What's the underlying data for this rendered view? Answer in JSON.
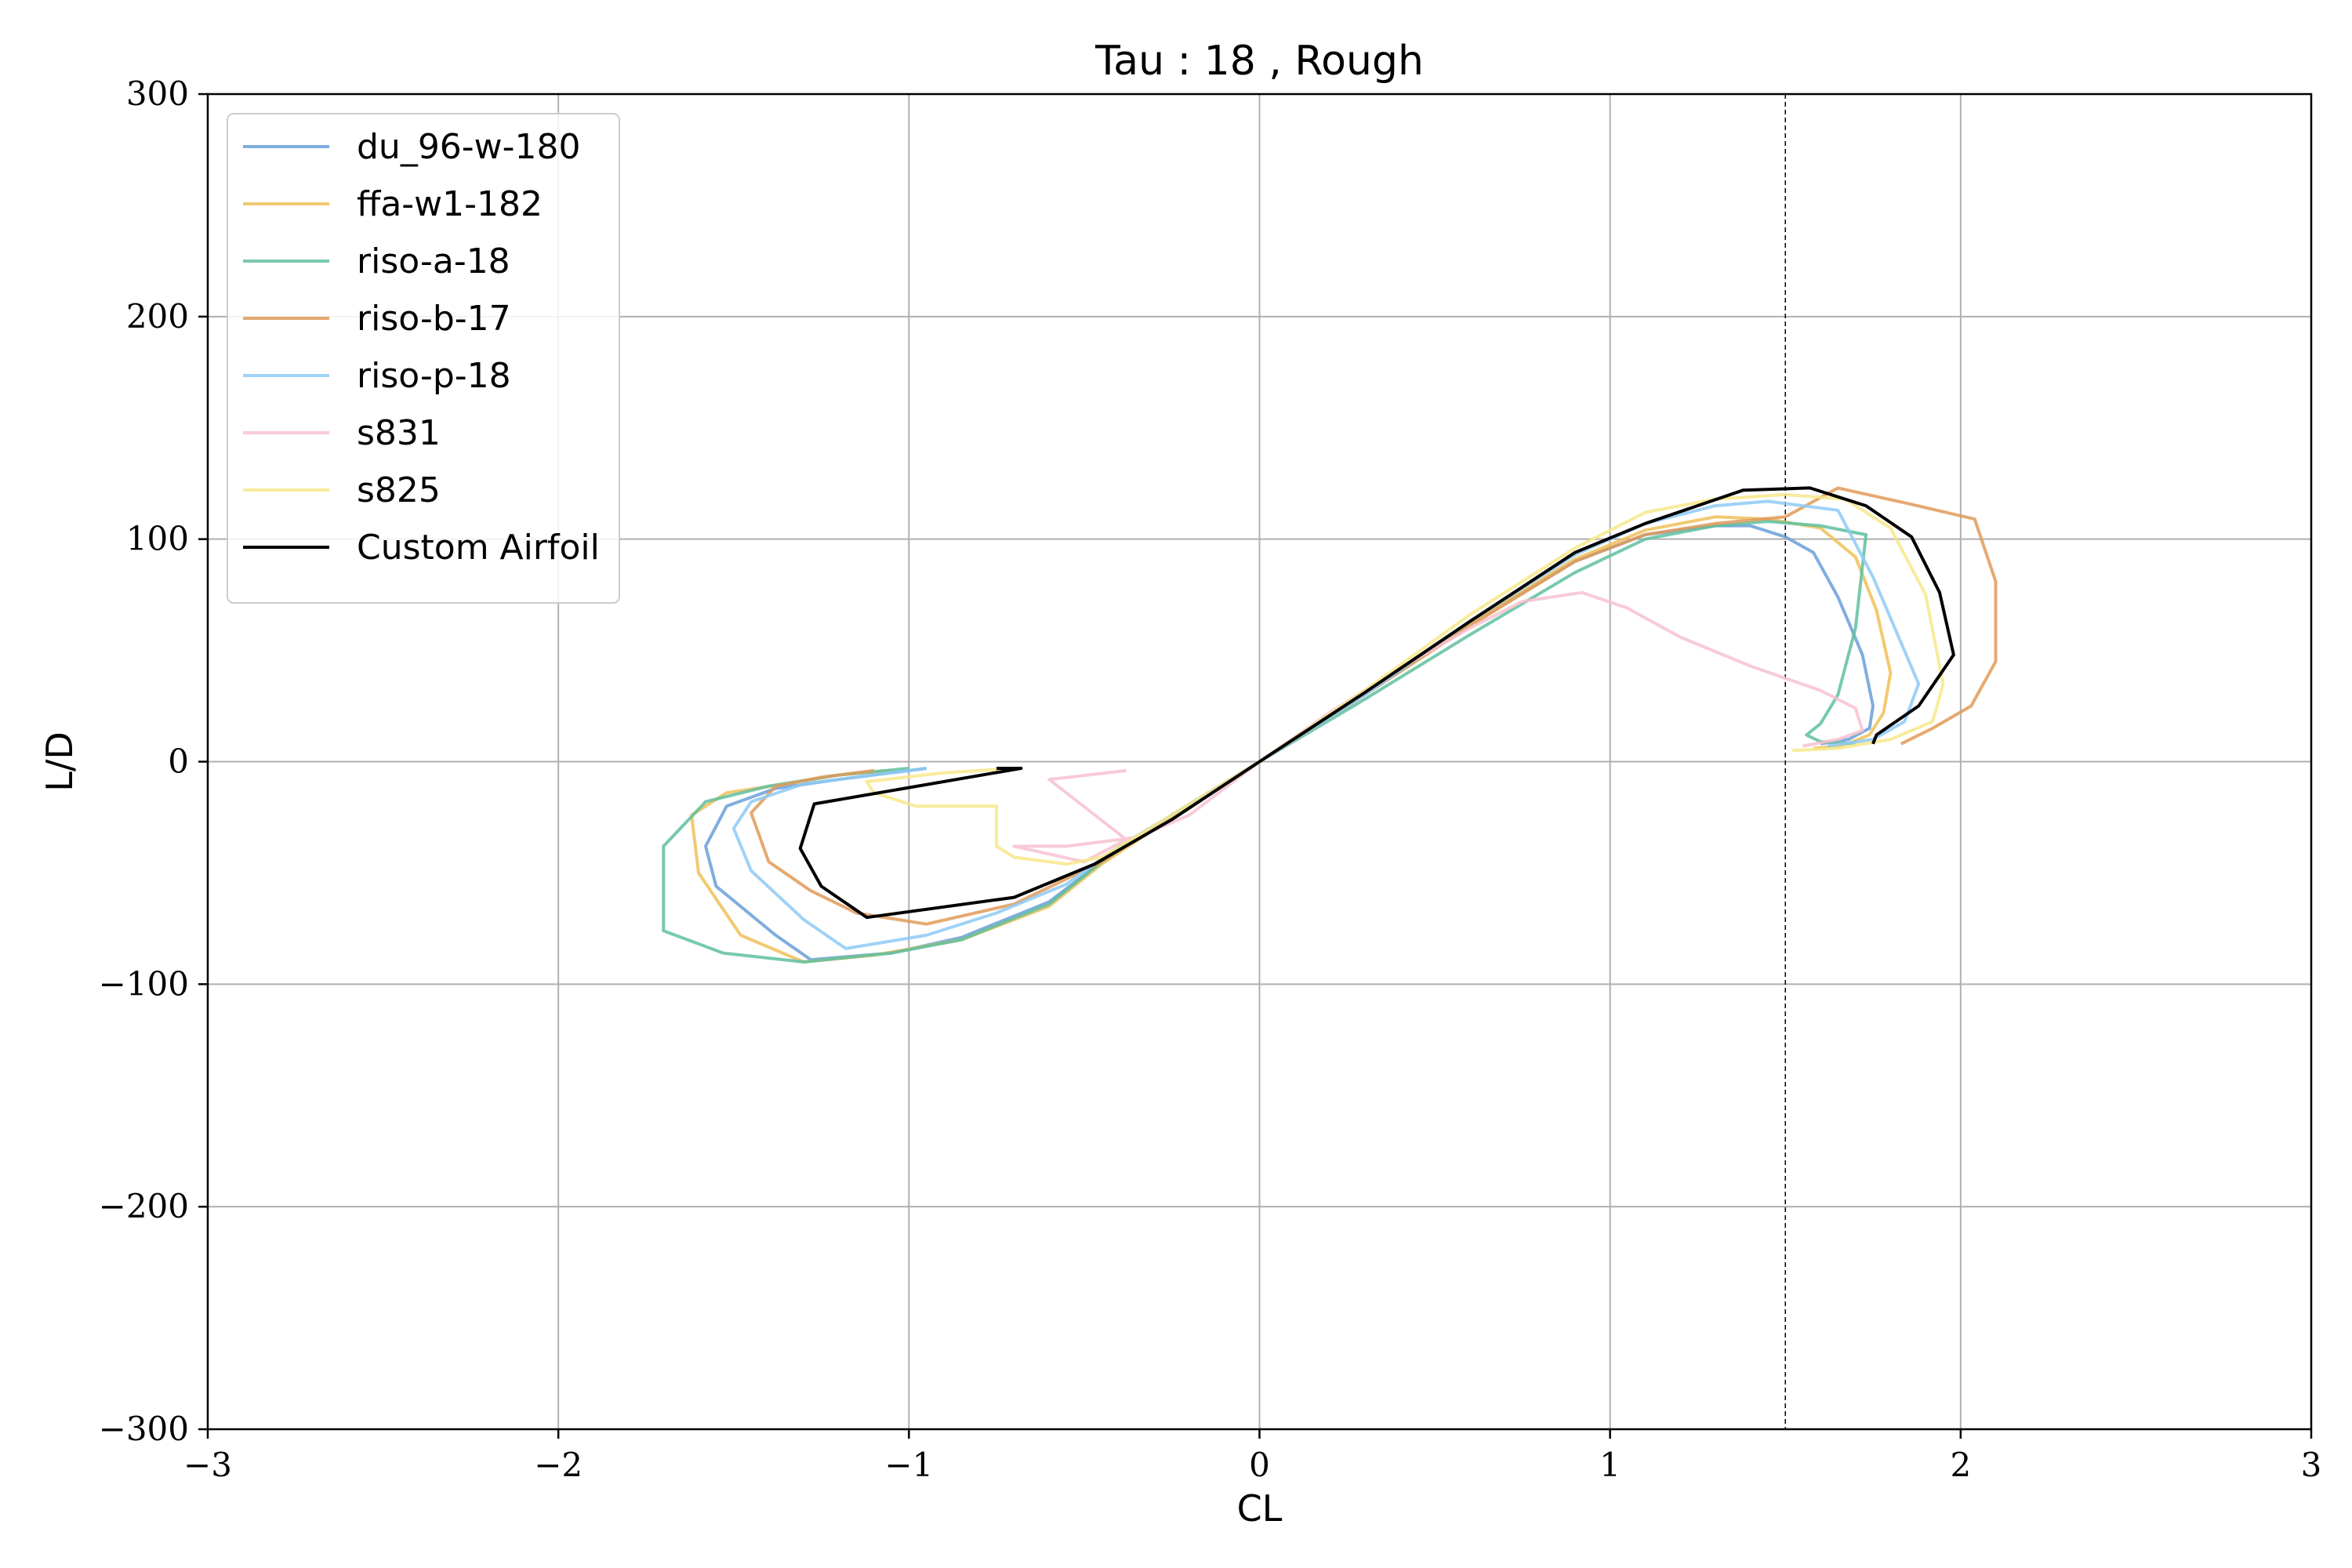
{
  "chart_data": {
    "type": "line",
    "title": "Tau : 18 , Rough",
    "xlabel": "CL",
    "ylabel": "L/D",
    "xlim": [
      -3,
      3
    ],
    "ylim": [
      -300,
      300
    ],
    "xticks": [
      -3,
      -2,
      -1,
      0,
      1,
      2,
      3
    ],
    "yticks": [
      -300,
      -200,
      -100,
      0,
      100,
      200,
      300
    ],
    "xtick_labels": [
      "−3",
      "−2",
      "−1",
      "0",
      "1",
      "2",
      "3"
    ],
    "ytick_labels": [
      "−300",
      "−200",
      "−100",
      "0",
      "100",
      "200",
      "300"
    ],
    "grid": true,
    "legend_position": "top-left",
    "reference_line": {
      "x": 1.5,
      "style": "dashed",
      "color": "#000000"
    },
    "series": [
      {
        "name": "du_96-w-180",
        "color": "#6a9fd8",
        "x": [
          -0.95,
          -1.05,
          -1.2,
          -1.38,
          -1.52,
          -1.58,
          -1.55,
          -1.38,
          -1.28,
          -1.05,
          -0.85,
          -0.6,
          -0.45,
          -0.25,
          0,
          0.3,
          0.6,
          0.9,
          1.1,
          1.3,
          1.4,
          1.5,
          1.58,
          1.65,
          1.72,
          1.75,
          1.74,
          1.68,
          1.6
        ],
        "y": [
          -3,
          -5,
          -8,
          -12,
          -20,
          -38,
          -56,
          -78,
          -89,
          -86,
          -79,
          -63,
          -45,
          -24,
          0,
          30,
          62,
          90,
          102,
          106,
          106,
          101,
          94,
          74,
          48,
          25,
          15,
          10,
          8
        ]
      },
      {
        "name": "ffa-w1-182",
        "color": "#f0c058",
        "x": [
          -1.05,
          -1.2,
          -1.35,
          -1.52,
          -1.62,
          -1.6,
          -1.48,
          -1.3,
          -1.1,
          -0.85,
          -0.6,
          -0.45,
          -0.25,
          0,
          0.3,
          0.6,
          0.9,
          1.1,
          1.3,
          1.45,
          1.6,
          1.7,
          1.76,
          1.8,
          1.78,
          1.74,
          1.66,
          1.58
        ],
        "y": [
          -4,
          -6,
          -10,
          -14,
          -24,
          -50,
          -78,
          -90,
          -87,
          -80,
          -65,
          -46,
          -25,
          0,
          30,
          62,
          91,
          104,
          110,
          109,
          105,
          92,
          68,
          40,
          22,
          12,
          7,
          6
        ]
      },
      {
        "name": "riso-a-18",
        "color": "#5fbf9f",
        "x": [
          -1.0,
          -1.2,
          -1.4,
          -1.58,
          -1.7,
          -1.7,
          -1.53,
          -1.3,
          -1.05,
          -0.85,
          -0.6,
          -0.45,
          -0.25,
          0,
          0.3,
          0.6,
          0.9,
          1.1,
          1.3,
          1.45,
          1.6,
          1.73,
          1.7,
          1.65,
          1.6,
          1.56,
          1.6,
          1.7
        ],
        "y": [
          -3,
          -6,
          -11,
          -18,
          -38,
          -76,
          -86,
          -90,
          -86,
          -80,
          -64,
          -45,
          -24,
          0,
          28,
          57,
          85,
          100,
          106,
          108,
          106,
          102,
          60,
          30,
          17,
          12,
          9,
          8
        ]
      },
      {
        "name": "riso-b-17",
        "color": "#e09a58",
        "x": [
          -1.1,
          -1.25,
          -1.38,
          -1.45,
          -1.4,
          -1.28,
          -1.15,
          -0.95,
          -0.7,
          -0.45,
          -0.25,
          0,
          0.3,
          0.6,
          0.9,
          1.1,
          1.3,
          1.5,
          1.65,
          1.85,
          2.04,
          2.1,
          2.1,
          2.03,
          1.92,
          1.83
        ],
        "y": [
          -4,
          -7,
          -11,
          -23,
          -45,
          -58,
          -68,
          -73,
          -64,
          -45,
          -24,
          0,
          30,
          61,
          90,
          102,
          107,
          110,
          123,
          116,
          109,
          81,
          45,
          25,
          15,
          8
        ]
      },
      {
        "name": "riso-p-18",
        "color": "#8ecaf4",
        "x": [
          -0.95,
          -1.1,
          -1.3,
          -1.45,
          -1.5,
          -1.45,
          -1.3,
          -1.18,
          -0.95,
          -0.75,
          -0.55,
          -0.4,
          -0.25,
          0,
          0.3,
          0.6,
          0.9,
          1.1,
          1.3,
          1.45,
          1.65,
          1.75,
          1.88,
          1.84,
          1.75,
          1.62
        ],
        "y": [
          -3,
          -6,
          -10,
          -18,
          -30,
          -49,
          -71,
          -84,
          -78,
          -68,
          -55,
          -38,
          -24,
          0,
          30,
          63,
          93,
          107,
          115,
          117,
          113,
          83,
          35,
          18,
          10,
          7
        ]
      },
      {
        "name": "s831",
        "color": "#f7c1d0",
        "x": [
          -0.38,
          -0.6,
          -0.38,
          -0.5,
          -0.7,
          -0.55,
          -0.35,
          -0.2,
          0,
          0.2,
          0.4,
          0.6,
          0.75,
          0.92,
          1.05,
          1.2,
          1.4,
          1.6,
          1.7,
          1.72,
          1.65,
          1.55
        ],
        "y": [
          -4,
          -8,
          -35,
          -45,
          -38,
          -38,
          -34,
          -24,
          0,
          22,
          42,
          60,
          72,
          76,
          69,
          56,
          43,
          32,
          24,
          14,
          10,
          7
        ]
      },
      {
        "name": "s825",
        "color": "#f7e889",
        "x": [
          -0.7,
          -0.9,
          -1.12,
          -1.1,
          -0.98,
          -0.75,
          -0.75,
          -0.7,
          -0.55,
          -0.45,
          -0.25,
          0,
          0.3,
          0.6,
          0.9,
          1.1,
          1.3,
          1.5,
          1.67,
          1.8,
          1.9,
          1.95,
          1.92,
          1.8,
          1.65,
          1.52
        ],
        "y": [
          -3,
          -5,
          -9,
          -14,
          -20,
          -20,
          -38,
          -43,
          -46,
          -43,
          -24,
          0,
          32,
          66,
          96,
          112,
          118,
          120,
          118,
          105,
          75,
          35,
          18,
          10,
          6,
          5
        ]
      },
      {
        "name": "Custom Airfoil",
        "color": "#000000",
        "x": [
          -0.75,
          -0.68,
          -1.27,
          -1.31,
          -1.25,
          -1.12,
          -0.7,
          -0.47,
          -0.25,
          0,
          0.3,
          0.6,
          0.9,
          1.1,
          1.38,
          1.57,
          1.73,
          1.86,
          1.94,
          1.98,
          1.88,
          1.76,
          1.75
        ],
        "y": [
          -3,
          -3,
          -19,
          -39,
          -56,
          -70,
          -61,
          -46,
          -26,
          0,
          31,
          63,
          94,
          107,
          122,
          123,
          115,
          101,
          76,
          48,
          25,
          12,
          8
        ]
      }
    ]
  }
}
